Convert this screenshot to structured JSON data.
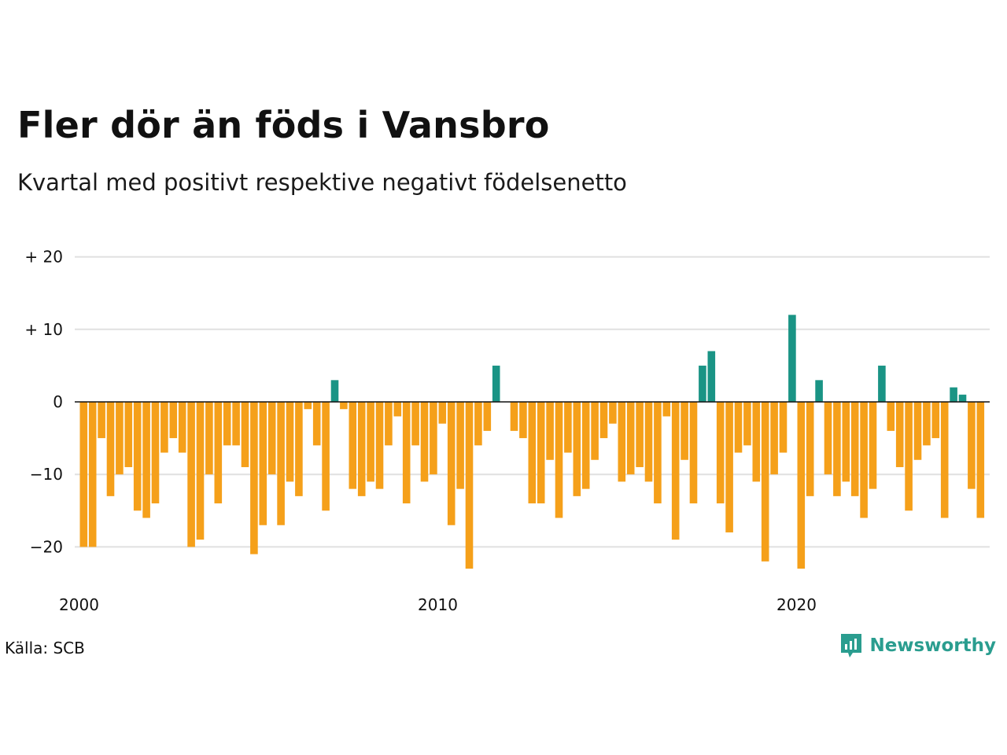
{
  "title": "Fler dör än föds i Vansbro",
  "subtitle": "Kvartal med positivt respektive negativt födelsenetto",
  "source": "Källa: SCB",
  "brand": "Newsworthy",
  "colors": {
    "positive": "#1a9485",
    "negative": "#f5a01a",
    "grid": "#e0e0e0",
    "brand": "#2a9d8f"
  },
  "chart_data": {
    "type": "bar",
    "title": "",
    "xlabel": "",
    "ylabel": "",
    "ylim": [
      -25,
      20
    ],
    "yticks": [
      {
        "value": 20,
        "label": "+ 20"
      },
      {
        "value": 10,
        "label": "+ 10"
      },
      {
        "value": 0,
        "label": "0"
      },
      {
        "value": -10,
        "label": "−10"
      },
      {
        "value": -20,
        "label": "−20"
      }
    ],
    "xticks": [
      "2000",
      "2010",
      "2020"
    ],
    "start_year": 2000,
    "grid": true,
    "values": [
      -20,
      -20,
      -5,
      -13,
      -10,
      -9,
      -15,
      -16,
      -14,
      -7,
      -5,
      -7,
      -20,
      -19,
      -10,
      -14,
      -6,
      -6,
      -9,
      -21,
      -17,
      -10,
      -17,
      -11,
      -13,
      -1,
      -6,
      -15,
      3,
      -1,
      -12,
      -13,
      -11,
      -12,
      -6,
      -2,
      -14,
      -6,
      -11,
      -10,
      -3,
      -17,
      -12,
      -23,
      -6,
      -4,
      5,
      0,
      -4,
      -5,
      -14,
      -14,
      -8,
      -16,
      -7,
      -13,
      -12,
      -8,
      -5,
      -3,
      -11,
      -10,
      -9,
      -11,
      -14,
      -2,
      -19,
      -8,
      -14,
      5,
      7,
      -14,
      -18,
      -7,
      -6,
      -11,
      -22,
      -10,
      -7,
      12,
      -23,
      -13,
      3,
      -10,
      -13,
      -11,
      -13,
      -16,
      -12,
      5,
      -4,
      -9,
      -15,
      -8,
      -6,
      -5,
      -16,
      2,
      1,
      -12,
      -16
    ]
  }
}
